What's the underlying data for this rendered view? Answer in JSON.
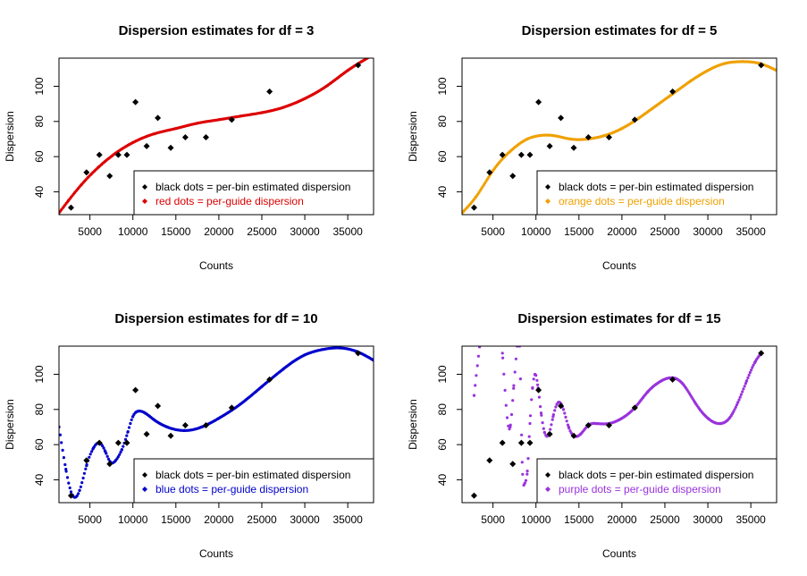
{
  "chart_data": [
    {
      "type": "scatter",
      "title": "Dispersion estimates for df = 3",
      "xlabel": "Counts",
      "ylabel": "Dispersion",
      "xlim": [
        1400,
        38000
      ],
      "ylim": [
        27,
        116
      ],
      "xticks": [
        5000,
        10000,
        15000,
        20000,
        25000,
        30000,
        35000
      ],
      "xtick_labels": [
        "5000",
        "10000",
        "15000",
        "20000",
        "25000",
        "30000",
        "35000"
      ],
      "yticks": [
        40,
        60,
        80,
        100
      ],
      "ytick_labels": [
        "40",
        "60",
        "80",
        "100"
      ],
      "fit_color": "#dd0000",
      "legend_position": "bottom-right",
      "legend": [
        {
          "label": "black dots = per-bin estimated dispersion",
          "color": "#000000"
        },
        {
          "label": "red dots = per-guide dispersion",
          "color": "#dd0000"
        }
      ],
      "series": [
        {
          "name": "per-bin estimated dispersion",
          "x": [
            2800,
            4600,
            6100,
            7300,
            8300,
            9300,
            10300,
            11600,
            12900,
            14400,
            16100,
            18500,
            21500,
            25900,
            36200
          ],
          "y": [
            31,
            51,
            61,
            49,
            61,
            61,
            91,
            66,
            82,
            65,
            71,
            71,
            81,
            97,
            112
          ]
        },
        {
          "name": "per-guide dispersion",
          "x": [
            1400,
            2500,
            4000,
            6000,
            8000,
            10000,
            12500,
            15000,
            17500,
            20000,
            22500,
            25000,
            27500,
            30000,
            32500,
            35000,
            38000
          ],
          "y": [
            28,
            35,
            44,
            54,
            62,
            68,
            73,
            76,
            79,
            81,
            83,
            85,
            88,
            93,
            100,
            109,
            118
          ]
        }
      ]
    },
    {
      "type": "scatter",
      "title": "Dispersion estimates for df = 5",
      "xlabel": "Counts",
      "ylabel": "Dispersion",
      "xlim": [
        1400,
        38000
      ],
      "ylim": [
        27,
        116
      ],
      "xticks": [
        5000,
        10000,
        15000,
        20000,
        25000,
        30000,
        35000
      ],
      "xtick_labels": [
        "5000",
        "10000",
        "15000",
        "20000",
        "25000",
        "30000",
        "35000"
      ],
      "yticks": [
        40,
        60,
        80,
        100
      ],
      "ytick_labels": [
        "40",
        "60",
        "80",
        "100"
      ],
      "fit_color": "#f0a000",
      "legend_position": "bottom-right",
      "legend": [
        {
          "label": "black dots = per-bin estimated dispersion",
          "color": "#000000"
        },
        {
          "label": "orange dots = per-guide dispersion",
          "color": "#f0a000"
        }
      ],
      "series": [
        {
          "name": "per-bin estimated dispersion",
          "x": [
            2800,
            4600,
            6100,
            7300,
            8300,
            9300,
            10300,
            11600,
            12900,
            14400,
            16100,
            18500,
            21500,
            25900,
            36200
          ],
          "y": [
            31,
            51,
            61,
            49,
            61,
            61,
            91,
            66,
            82,
            65,
            71,
            71,
            81,
            97,
            112
          ]
        },
        {
          "name": "per-guide dispersion",
          "x": [
            1400,
            3000,
            5000,
            7000,
            9000,
            10500,
            12000,
            14000,
            16000,
            18000,
            20000,
            22000,
            24000,
            26000,
            28000,
            30000,
            32000,
            34000,
            36000,
            38000
          ],
          "y": [
            28,
            37,
            52,
            63,
            70,
            72,
            72,
            70,
            70,
            72,
            76,
            82,
            89,
            96,
            103,
            109,
            113,
            114,
            113,
            109
          ]
        }
      ]
    },
    {
      "type": "scatter",
      "title": "Dispersion estimates for df = 10",
      "xlabel": "Counts",
      "ylabel": "Dispersion",
      "xlim": [
        1400,
        38000
      ],
      "ylim": [
        27,
        116
      ],
      "xticks": [
        5000,
        10000,
        15000,
        20000,
        25000,
        30000,
        35000
      ],
      "xtick_labels": [
        "5000",
        "10000",
        "15000",
        "20000",
        "25000",
        "30000",
        "35000"
      ],
      "yticks": [
        40,
        60,
        80,
        100
      ],
      "ytick_labels": [
        "40",
        "60",
        "80",
        "100"
      ],
      "fit_color": "#0000cc",
      "legend_position": "bottom-right",
      "legend": [
        {
          "label": "black dots = per-bin estimated dispersion",
          "color": "#000000"
        },
        {
          "label": "blue dots = per-guide dispersion",
          "color": "#0000cc"
        }
      ],
      "series": [
        {
          "name": "per-bin estimated dispersion",
          "x": [
            2800,
            4600,
            6100,
            7300,
            8300,
            9300,
            10300,
            11600,
            12900,
            14400,
            16100,
            18500,
            21500,
            25900,
            36200
          ],
          "y": [
            31,
            51,
            61,
            49,
            61,
            61,
            91,
            66,
            82,
            65,
            71,
            71,
            81,
            97,
            112
          ]
        },
        {
          "name": "per-guide dispersion",
          "x": [
            1400,
            2200,
            3000,
            3800,
            4600,
            5400,
            6100,
            6800,
            7400,
            8000,
            8700,
            9400,
            10000,
            10600,
            11400,
            12500,
            14000,
            16000,
            18000,
            20000,
            22500,
            25000,
            27500,
            30000,
            32000,
            34000,
            36000,
            38000
          ],
          "y": [
            70,
            46,
            31,
            34,
            48,
            58,
            61,
            56,
            50,
            51,
            57,
            67,
            76,
            79,
            78,
            74,
            70,
            68,
            70,
            75,
            83,
            93,
            103,
            111,
            114,
            115,
            113,
            108
          ]
        }
      ]
    },
    {
      "type": "scatter",
      "title": "Dispersion estimates for df = 15",
      "xlabel": "Counts",
      "ylabel": "Dispersion",
      "xlim": [
        1400,
        38000
      ],
      "ylim": [
        27,
        116
      ],
      "xticks": [
        5000,
        10000,
        15000,
        20000,
        25000,
        30000,
        35000
      ],
      "xtick_labels": [
        "5000",
        "10000",
        "15000",
        "20000",
        "25000",
        "30000",
        "35000"
      ],
      "yticks": [
        40,
        60,
        80,
        100
      ],
      "ytick_labels": [
        "40",
        "60",
        "80",
        "100"
      ],
      "fit_color": "#9933dd",
      "legend_position": "bottom-right",
      "legend": [
        {
          "label": "black dots = per-bin estimated dispersion",
          "color": "#000000"
        },
        {
          "label": "purple dots = per-guide dispersion",
          "color": "#9933dd"
        }
      ],
      "series": [
        {
          "name": "per-bin estimated dispersion",
          "x": [
            2800,
            4600,
            6100,
            7300,
            8300,
            9300,
            10300,
            11600,
            12900,
            14400,
            16100,
            18500,
            21500,
            25900,
            36200
          ],
          "y": [
            31,
            51,
            61,
            49,
            61,
            61,
            91,
            66,
            82,
            65,
            71,
            71,
            81,
            97,
            112
          ]
        },
        {
          "name": "per-guide dispersion",
          "x": [
            2800,
            6100,
            7000,
            7400,
            7800,
            8100,
            8400,
            8700,
            9000,
            9300,
            9600,
            9900,
            10200,
            10600,
            11000,
            11500,
            12000,
            12600,
            13200,
            13800,
            14400,
            15200,
            16100,
            17000,
            18500,
            20000,
            21500,
            23000,
            24500,
            25900,
            27000,
            28500,
            30000,
            31500,
            32500,
            33500,
            34500,
            35500,
            36200
          ],
          "y": [
            88,
            112,
            70,
            92,
            116,
            116,
            50,
            38,
            45,
            72,
            92,
            100,
            94,
            78,
            67,
            66,
            76,
            84,
            80,
            70,
            65,
            66,
            71,
            72,
            72,
            75,
            81,
            90,
            96,
            98,
            95,
            84,
            75,
            72,
            75,
            84,
            96,
            107,
            112
          ]
        }
      ]
    }
  ]
}
